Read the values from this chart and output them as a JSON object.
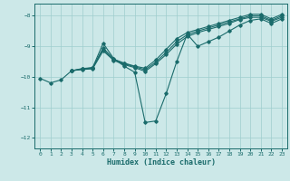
{
  "background_color": "#cce8e8",
  "grid_color": "#9fcece",
  "line_color": "#1a6b6b",
  "xlabel": "Humidex (Indice chaleur)",
  "xlim": [
    -0.5,
    23.5
  ],
  "ylim": [
    -12.35,
    -7.6
  ],
  "yticks": [
    -12,
    -11,
    -10,
    -9,
    -8
  ],
  "xticks": [
    0,
    1,
    2,
    3,
    4,
    5,
    6,
    7,
    8,
    9,
    10,
    11,
    12,
    13,
    14,
    15,
    16,
    17,
    18,
    19,
    20,
    21,
    22,
    23
  ],
  "series1": [
    [
      0,
      -10.05
    ],
    [
      1,
      -10.2
    ],
    [
      2,
      -10.1
    ],
    [
      3,
      -9.8
    ],
    [
      4,
      -9.75
    ],
    [
      5,
      -9.7
    ],
    [
      6,
      -8.9
    ],
    [
      7,
      -9.4
    ],
    [
      8,
      -9.65
    ],
    [
      9,
      -9.85
    ],
    [
      10,
      -11.5
    ],
    [
      11,
      -11.45
    ],
    [
      12,
      -10.55
    ],
    [
      13,
      -9.5
    ],
    [
      14,
      -8.6
    ],
    [
      15,
      -9.0
    ],
    [
      16,
      -8.85
    ],
    [
      17,
      -8.7
    ],
    [
      18,
      -8.5
    ],
    [
      19,
      -8.3
    ],
    [
      20,
      -8.15
    ],
    [
      21,
      -8.1
    ],
    [
      22,
      -8.25
    ],
    [
      23,
      -8.1
    ]
  ],
  "series2": [
    [
      3,
      -9.8
    ],
    [
      4,
      -9.75
    ],
    [
      5,
      -9.72
    ],
    [
      6,
      -9.05
    ],
    [
      7,
      -9.42
    ],
    [
      8,
      -9.55
    ],
    [
      9,
      -9.65
    ],
    [
      10,
      -9.72
    ],
    [
      11,
      -9.45
    ],
    [
      12,
      -9.1
    ],
    [
      13,
      -8.75
    ],
    [
      14,
      -8.55
    ],
    [
      15,
      -8.45
    ],
    [
      16,
      -8.35
    ],
    [
      17,
      -8.25
    ],
    [
      18,
      -8.15
    ],
    [
      19,
      -8.05
    ],
    [
      20,
      -7.95
    ],
    [
      21,
      -7.95
    ],
    [
      22,
      -8.1
    ],
    [
      23,
      -7.95
    ]
  ],
  "series3": [
    [
      3,
      -9.8
    ],
    [
      4,
      -9.73
    ],
    [
      5,
      -9.7
    ],
    [
      6,
      -9.1
    ],
    [
      7,
      -9.44
    ],
    [
      8,
      -9.57
    ],
    [
      9,
      -9.67
    ],
    [
      10,
      -9.77
    ],
    [
      11,
      -9.52
    ],
    [
      12,
      -9.2
    ],
    [
      13,
      -8.85
    ],
    [
      14,
      -8.62
    ],
    [
      15,
      -8.5
    ],
    [
      16,
      -8.4
    ],
    [
      17,
      -8.3
    ],
    [
      18,
      -8.2
    ],
    [
      19,
      -8.1
    ],
    [
      20,
      -8.0
    ],
    [
      21,
      -8.0
    ],
    [
      22,
      -8.15
    ],
    [
      23,
      -8.0
    ]
  ],
  "series4": [
    [
      3,
      -9.8
    ],
    [
      4,
      -9.76
    ],
    [
      5,
      -9.74
    ],
    [
      6,
      -9.15
    ],
    [
      7,
      -9.46
    ],
    [
      8,
      -9.6
    ],
    [
      9,
      -9.7
    ],
    [
      10,
      -9.82
    ],
    [
      11,
      -9.57
    ],
    [
      12,
      -9.27
    ],
    [
      13,
      -8.93
    ],
    [
      14,
      -8.68
    ],
    [
      15,
      -8.55
    ],
    [
      16,
      -8.45
    ],
    [
      17,
      -8.35
    ],
    [
      18,
      -8.25
    ],
    [
      19,
      -8.12
    ],
    [
      20,
      -8.05
    ],
    [
      21,
      -8.05
    ],
    [
      22,
      -8.18
    ],
    [
      23,
      -8.05
    ]
  ]
}
